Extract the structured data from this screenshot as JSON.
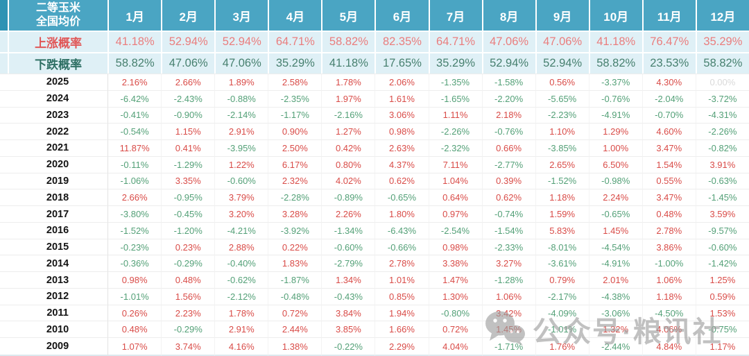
{
  "table": {
    "corner": {
      "line1": "二等玉米",
      "line2": "全国均价"
    },
    "months": [
      "1月",
      "2月",
      "3月",
      "4月",
      "5月",
      "6月",
      "7月",
      "8月",
      "9月",
      "10月",
      "11月",
      "12月"
    ],
    "prob_rows": [
      {
        "label": "上涨概率",
        "type": "up",
        "values": [
          "41.18%",
          "52.94%",
          "52.94%",
          "64.71%",
          "58.82%",
          "82.35%",
          "64.71%",
          "47.06%",
          "47.06%",
          "41.18%",
          "76.47%",
          "35.29%"
        ]
      },
      {
        "label": "下跌概率",
        "type": "down",
        "values": [
          "58.82%",
          "47.06%",
          "47.06%",
          "35.29%",
          "41.18%",
          "17.65%",
          "35.29%",
          "52.94%",
          "52.94%",
          "58.82%",
          "23.53%",
          "58.82%"
        ]
      }
    ],
    "year_rows": [
      {
        "year": "2025",
        "values": [
          "2.16%",
          "2.66%",
          "1.89%",
          "2.58%",
          "1.78%",
          "2.06%",
          "-1.35%",
          "-1.58%",
          "0.56%",
          "-3.37%",
          "4.30%",
          "0.00%"
        ]
      },
      {
        "year": "2024",
        "values": [
          "-6.42%",
          "-2.43%",
          "-0.88%",
          "-2.35%",
          "1.97%",
          "1.61%",
          "-1.65%",
          "-2.20%",
          "-5.65%",
          "-0.76%",
          "-2.04%",
          "-3.72%"
        ]
      },
      {
        "year": "2023",
        "values": [
          "-0.41%",
          "-0.90%",
          "-2.14%",
          "-1.17%",
          "-2.16%",
          "3.06%",
          "1.11%",
          "2.18%",
          "-2.23%",
          "-4.91%",
          "-0.70%",
          "-4.31%"
        ]
      },
      {
        "year": "2022",
        "values": [
          "-0.54%",
          "1.15%",
          "2.91%",
          "0.90%",
          "1.27%",
          "0.98%",
          "-2.26%",
          "-0.76%",
          "1.10%",
          "1.29%",
          "4.60%",
          "-2.26%"
        ]
      },
      {
        "year": "2021",
        "values": [
          "11.87%",
          "0.41%",
          "-3.95%",
          "2.50%",
          "0.42%",
          "2.63%",
          "-2.32%",
          "0.66%",
          "-3.85%",
          "1.00%",
          "3.47%",
          "-0.82%"
        ]
      },
      {
        "year": "2020",
        "values": [
          "-0.11%",
          "-1.29%",
          "1.22%",
          "6.17%",
          "0.80%",
          "4.37%",
          "7.11%",
          "-2.77%",
          "2.65%",
          "6.50%",
          "1.54%",
          "3.91%"
        ]
      },
      {
        "year": "2019",
        "values": [
          "-1.06%",
          "3.35%",
          "-0.60%",
          "2.32%",
          "4.02%",
          "0.62%",
          "1.04%",
          "0.39%",
          "-1.52%",
          "-0.98%",
          "0.55%",
          "-0.63%"
        ]
      },
      {
        "year": "2018",
        "values": [
          "2.66%",
          "-0.95%",
          "3.79%",
          "-2.28%",
          "-0.89%",
          "-0.65%",
          "0.64%",
          "0.62%",
          "1.18%",
          "2.24%",
          "3.47%",
          "-1.45%"
        ]
      },
      {
        "year": "2017",
        "values": [
          "-3.80%",
          "-0.45%",
          "3.20%",
          "3.28%",
          "2.26%",
          "1.80%",
          "0.97%",
          "-0.74%",
          "1.59%",
          "-0.65%",
          "0.48%",
          "3.59%"
        ]
      },
      {
        "year": "2016",
        "values": [
          "-1.52%",
          "-1.20%",
          "-4.21%",
          "-3.92%",
          "-1.34%",
          "-6.43%",
          "-2.54%",
          "-1.54%",
          "5.83%",
          "1.45%",
          "2.78%",
          "-9.57%"
        ]
      },
      {
        "year": "2015",
        "values": [
          "-0.23%",
          "0.23%",
          "2.88%",
          "0.22%",
          "-0.60%",
          "-0.66%",
          "0.98%",
          "-2.33%",
          "-8.01%",
          "-4.54%",
          "3.86%",
          "-0.60%"
        ]
      },
      {
        "year": "2014",
        "values": [
          "-0.36%",
          "-0.29%",
          "-0.40%",
          "1.83%",
          "-2.79%",
          "2.78%",
          "3.38%",
          "3.27%",
          "-3.61%",
          "-4.91%",
          "-1.00%",
          "-1.42%"
        ]
      },
      {
        "year": "2013",
        "values": [
          "0.98%",
          "0.48%",
          "-0.62%",
          "-1.87%",
          "1.34%",
          "1.01%",
          "1.47%",
          "-1.28%",
          "0.79%",
          "2.01%",
          "1.06%",
          "1.25%"
        ]
      },
      {
        "year": "2012",
        "values": [
          "-1.01%",
          "1.56%",
          "-2.12%",
          "-0.48%",
          "-0.43%",
          "0.85%",
          "1.30%",
          "1.06%",
          "-2.17%",
          "-4.38%",
          "1.18%",
          "0.59%"
        ]
      },
      {
        "year": "2011",
        "values": [
          "0.26%",
          "2.23%",
          "1.78%",
          "0.72%",
          "3.84%",
          "1.94%",
          "-0.80%",
          "3.42%",
          "-4.09%",
          "-3.06%",
          "-4.50%",
          "1.53%"
        ]
      },
      {
        "year": "2010",
        "values": [
          "0.48%",
          "-0.29%",
          "2.91%",
          "2.44%",
          "3.85%",
          "1.66%",
          "0.72%",
          "1.45%",
          "-1.01%",
          "1.32%",
          "4.06%",
          "-0.75%"
        ]
      },
      {
        "year": "2009",
        "values": [
          "1.07%",
          "3.74%",
          "4.16%",
          "1.38%",
          "-0.22%",
          "2.29%",
          "4.04%",
          "-1.71%",
          "1.76%",
          "-2.44%",
          "4.84%",
          "1.17%"
        ]
      }
    ]
  },
  "watermark": {
    "text": "公众号·粮讯社",
    "icon": "wechat-icon"
  },
  "colors": {
    "header_bg": "#4aa5c3",
    "header_sliver_bg": "#2e93b4",
    "prob_row_bg": "#dff0f6",
    "up_label": "#e05757",
    "up_value": "#ea7d7d",
    "down_label": "#2f7065",
    "down_value": "#47806f",
    "positive": "#d94b47",
    "negative": "#53a077",
    "zero": "#d9d9d9",
    "watermark": "#9c9c9c"
  }
}
